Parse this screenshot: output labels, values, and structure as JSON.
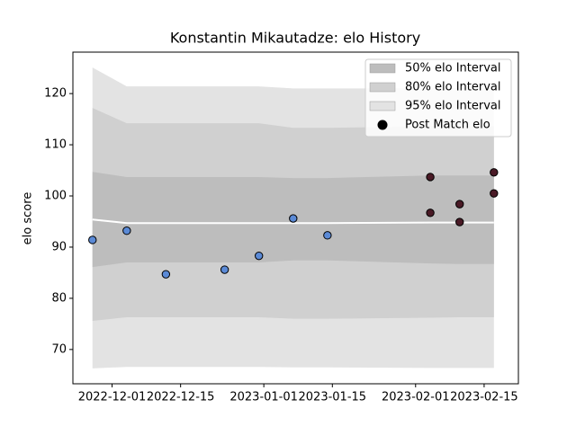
{
  "chart_data": {
    "type": "scatter",
    "title": "Konstantin Mikautadze: elo History",
    "y_label": "elo score",
    "xlim": [
      "2022-11-23",
      "2023-02-22"
    ],
    "xticks": [
      "2022-12-01",
      "2022-12-15",
      "2023-01-01",
      "2023-01-15",
      "2023-02-01",
      "2023-02-15"
    ],
    "ylim": [
      63.3,
      128.1
    ],
    "yticks": [
      70,
      80,
      90,
      100,
      110,
      120
    ],
    "legend": "upper right",
    "bands": [
      {
        "name": "50% elo Interval",
        "color": "#bdbdbd",
        "x": [
          "2022-11-27",
          "2022-12-04",
          "2022-12-12",
          "2022-12-24",
          "2022-12-31",
          "2023-01-07",
          "2023-01-14",
          "2023-02-04",
          "2023-02-10",
          "2023-02-17"
        ],
        "lower": [
          86.1,
          87.0,
          87.0,
          87.0,
          87.0,
          87.4,
          87.4,
          86.8,
          86.7,
          86.7
        ],
        "upper": [
          104.7,
          103.7,
          103.7,
          103.7,
          103.7,
          103.5,
          103.5,
          104.0,
          104.0,
          104.0
        ]
      },
      {
        "name": "80% elo Interval",
        "color": "#d0d0d0",
        "x": [
          "2022-11-27",
          "2022-12-04",
          "2022-12-12",
          "2022-12-24",
          "2022-12-31",
          "2023-01-07",
          "2023-01-14",
          "2023-02-04",
          "2023-02-10",
          "2023-02-17"
        ],
        "lower": [
          75.6,
          76.3,
          76.3,
          76.3,
          76.3,
          76.0,
          76.0,
          76.2,
          76.3,
          76.3
        ],
        "upper": [
          117.2,
          114.2,
          114.2,
          114.2,
          114.2,
          113.3,
          113.3,
          113.6,
          113.6,
          113.6
        ]
      },
      {
        "name": "95% elo Interval",
        "color": "#e3e3e3",
        "x": [
          "2022-11-27",
          "2022-12-04",
          "2022-12-12",
          "2022-12-24",
          "2022-12-31",
          "2023-01-07",
          "2023-01-14",
          "2023-02-04",
          "2023-02-10",
          "2023-02-17"
        ],
        "lower": [
          66.3,
          66.6,
          66.6,
          66.6,
          66.6,
          66.5,
          66.5,
          66.4,
          66.4,
          66.4
        ],
        "upper": [
          125.1,
          121.4,
          121.4,
          121.4,
          121.4,
          121.0,
          121.0,
          121.0,
          121.0,
          121.0
        ]
      }
    ],
    "line": {
      "color": "#ffffff",
      "x": [
        "2022-11-27",
        "2022-12-04",
        "2022-12-12",
        "2022-12-24",
        "2022-12-31",
        "2023-01-07",
        "2023-01-14",
        "2023-02-04",
        "2023-02-10",
        "2023-02-17"
      ],
      "values": [
        95.4,
        94.7,
        94.7,
        94.7,
        94.7,
        94.7,
        94.7,
        94.8,
        94.8,
        94.8
      ]
    },
    "series": [
      {
        "name": "Post Match elo",
        "color": "#000000",
        "x": [
          "2022-11-27",
          "2022-12-04",
          "2022-12-12",
          "2022-12-24",
          "2022-12-31",
          "2023-01-07",
          "2023-01-14",
          "2023-02-04",
          "2023-02-04",
          "2023-02-10",
          "2023-02-10",
          "2023-02-17",
          "2023-02-17"
        ],
        "values": [
          91.4,
          93.2,
          84.7,
          85.6,
          88.3,
          95.6,
          92.3,
          103.7,
          96.7,
          98.4,
          94.9,
          104.6,
          100.5
        ],
        "point_colors": [
          "#5b8ad6",
          "#5b8ad6",
          "#5b8ad6",
          "#5b8ad6",
          "#5b8ad6",
          "#5b8ad6",
          "#5b8ad6",
          "#4a1a26",
          "#4a1a26",
          "#4a1a26",
          "#4a1a26",
          "#4a1a26",
          "#4a1a26"
        ]
      }
    ]
  }
}
